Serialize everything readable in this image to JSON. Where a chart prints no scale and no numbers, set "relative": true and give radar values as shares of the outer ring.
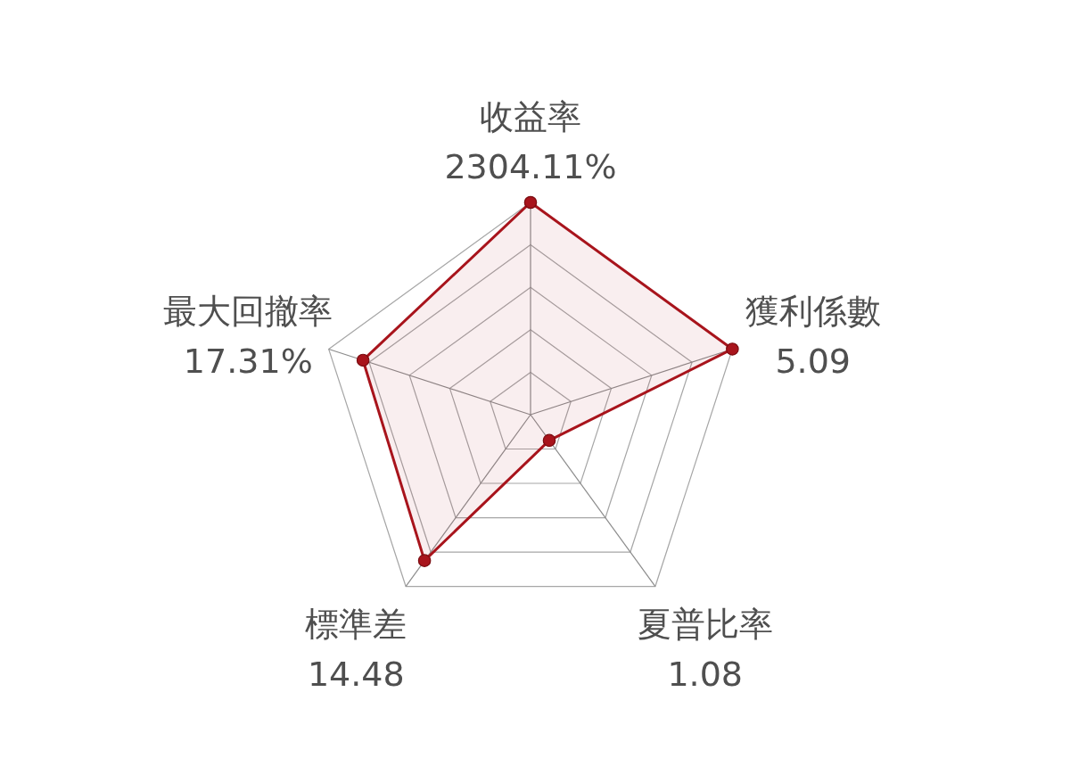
{
  "chart_data": {
    "type": "radar",
    "categories": [
      "收益率\n2304.11%",
      "獲利係數\n5.09",
      "夏普比率\n1.08",
      "標準差\n14.48",
      "最大回撤率\n17.31%"
    ],
    "relative": true,
    "grid": true,
    "marker": "circle",
    "series": [
      {
        "color": "#a8141c",
        "values": [
          1,
          1,
          0.15,
          0.85,
          0.83
        ]
      }
    ]
  }
}
